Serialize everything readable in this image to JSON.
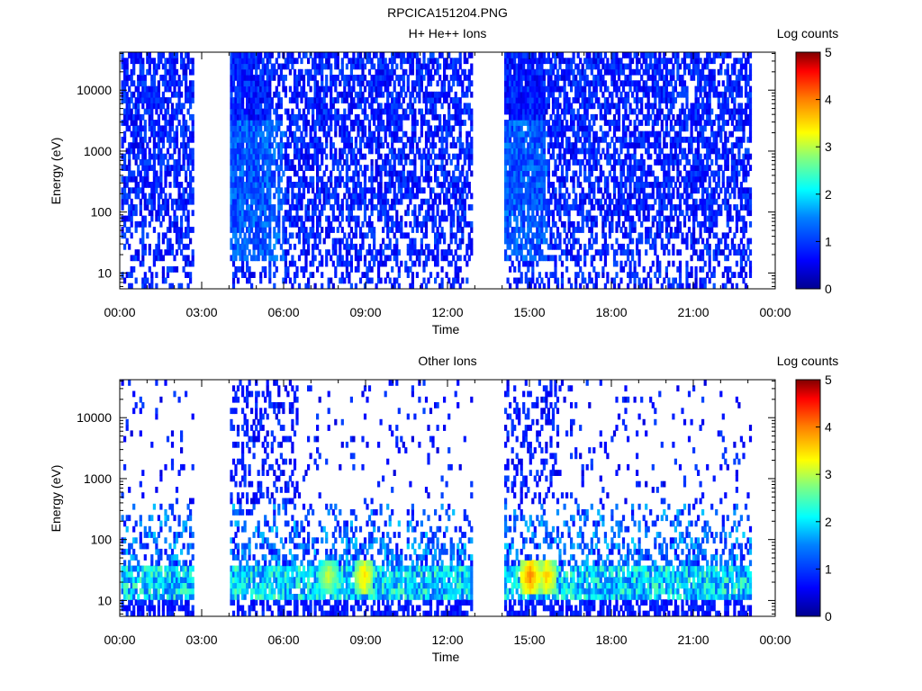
{
  "page": {
    "title": "RPCICA151204.PNG"
  },
  "chart_data": [
    {
      "type": "heatmap",
      "title": "H+ He++ Ions",
      "xlabel": "Time",
      "ylabel": "Energy (eV)",
      "x_ticks": [
        "00:00",
        "03:00",
        "06:00",
        "09:00",
        "12:00",
        "15:00",
        "18:00",
        "21:00",
        "00:00"
      ],
      "x_range_hours": [
        0,
        24
      ],
      "y_scale": "log",
      "y_range": [
        5.5,
        42000
      ],
      "y_ticks": [
        10,
        100,
        1000,
        10000
      ],
      "y_tick_labels": [
        "10",
        "100",
        "1000",
        "10000"
      ],
      "data_gaps_hours": [
        [
          2.7,
          4.0
        ],
        [
          12.9,
          14.0
        ]
      ],
      "data_end_hours": 23.1,
      "colorbar": {
        "label": "Log counts",
        "range": [
          0,
          5
        ],
        "ticks": [
          "0",
          "1",
          "2",
          "3",
          "4",
          "5"
        ]
      },
      "grid": false,
      "description_level": "mostly low counts (log ~0.3-1.2) across all energies with sparse coverage; slight enhancements near 04:00-06:00 and 14:00-15:30 below 100 eV"
    },
    {
      "type": "heatmap",
      "title": "Other Ions",
      "xlabel": "Time",
      "ylabel": "Energy (eV)",
      "x_ticks": [
        "00:00",
        "03:00",
        "06:00",
        "09:00",
        "12:00",
        "15:00",
        "18:00",
        "21:00",
        "00:00"
      ],
      "x_range_hours": [
        0,
        24
      ],
      "y_scale": "log",
      "y_range": [
        5.5,
        42000
      ],
      "y_ticks": [
        10,
        100,
        1000,
        10000
      ],
      "y_tick_labels": [
        "10",
        "100",
        "1000",
        "10000"
      ],
      "data_gaps_hours": [
        [
          2.7,
          4.0
        ],
        [
          12.9,
          14.0
        ]
      ],
      "data_end_hours": 23.1,
      "colorbar": {
        "label": "Log counts",
        "range": [
          0,
          5
        ],
        "ticks": [
          "0",
          "1",
          "2",
          "3",
          "4",
          "5"
        ]
      },
      "grid": false,
      "hot_spots": [
        {
          "time_hours": 8.9,
          "energy_eV": 25,
          "log_counts": 3.4
        },
        {
          "time_hours": 15.0,
          "energy_eV": 25,
          "log_counts": 3.8
        },
        {
          "time_hours": 15.6,
          "energy_eV": 25,
          "log_counts": 3.5
        },
        {
          "time_hours": 7.6,
          "energy_eV": 25,
          "log_counts": 3.0
        }
      ]
    }
  ]
}
